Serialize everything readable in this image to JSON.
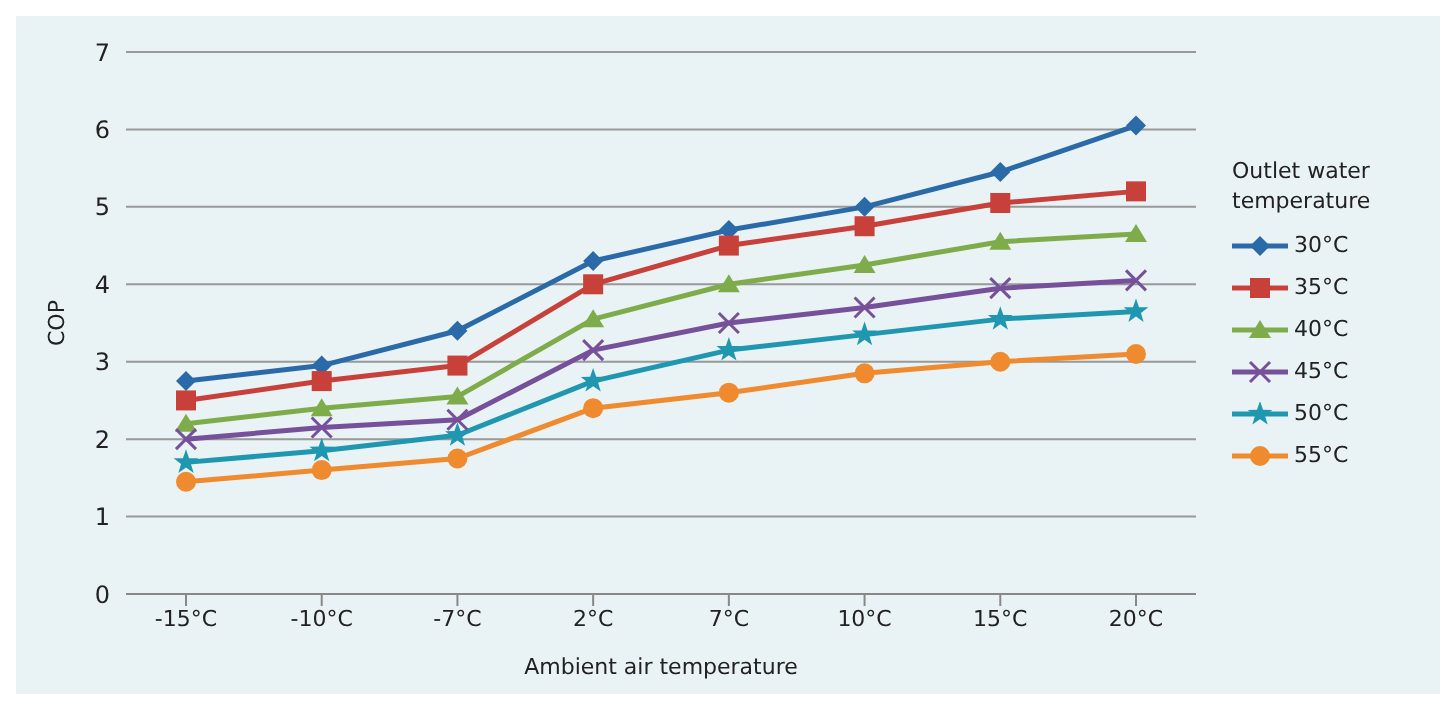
{
  "chart_data": {
    "type": "line",
    "xlabel": "Ambient air temperature",
    "ylabel": "COP",
    "legend_title": "Outlet water temperature",
    "categories": [
      "-15°C",
      "-10°C",
      "-7°C",
      "2°C",
      "7°C",
      "10°C",
      "15°C",
      "20°C"
    ],
    "series": [
      {
        "name": "30°C",
        "color": "#2a6aa8",
        "marker": "diamond",
        "values": [
          2.75,
          2.95,
          3.4,
          4.3,
          4.7,
          5.0,
          5.45,
          6.05
        ]
      },
      {
        "name": "35°C",
        "color": "#c8403a",
        "marker": "square",
        "values": [
          2.5,
          2.75,
          2.95,
          4.0,
          4.5,
          4.75,
          5.05,
          5.2
        ]
      },
      {
        "name": "40°C",
        "color": "#7fac4a",
        "marker": "triangle",
        "values": [
          2.2,
          2.4,
          2.55,
          3.55,
          4.0,
          4.25,
          4.55,
          4.65
        ]
      },
      {
        "name": "45°C",
        "color": "#76509a",
        "marker": "cross",
        "values": [
          2.0,
          2.15,
          2.25,
          3.15,
          3.5,
          3.7,
          3.95,
          4.05
        ]
      },
      {
        "name": "50°C",
        "color": "#1f97b0",
        "marker": "star",
        "values": [
          1.7,
          1.85,
          2.05,
          2.75,
          3.15,
          3.35,
          3.55,
          3.65
        ]
      },
      {
        "name": "55°C",
        "color": "#ef8a2e",
        "marker": "circle",
        "values": [
          1.45,
          1.6,
          1.75,
          2.4,
          2.6,
          2.85,
          3.0,
          3.1
        ]
      }
    ],
    "ylim": [
      0,
      7
    ],
    "yticks": [
      0,
      1,
      2,
      3,
      4,
      5,
      6,
      7
    ],
    "grid": "y",
    "legend": "right",
    "line_style": "solid"
  }
}
